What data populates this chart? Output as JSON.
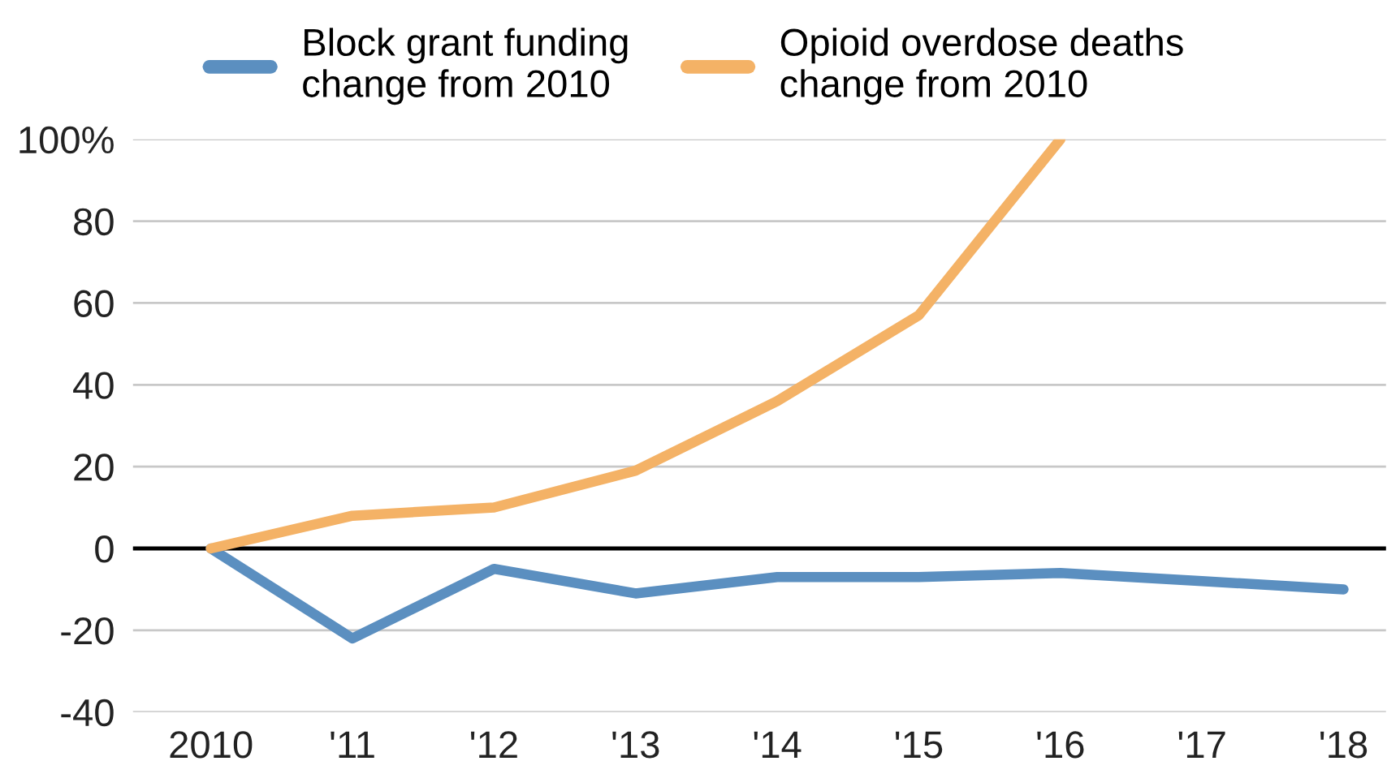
{
  "chart_data": {
    "type": "line",
    "categories": [
      "2010",
      "'11",
      "'12",
      "'13",
      "'14",
      "'15",
      "'16",
      "'17",
      "'18"
    ],
    "series": [
      {
        "name": "Block grant funding\nchange from 2010",
        "color": "#5b8fc0",
        "values": [
          0,
          -22,
          -5,
          -11,
          -7,
          -7,
          -6,
          -8,
          -10
        ]
      },
      {
        "name": "Opioid overdose deaths\nchange from 2010",
        "color": "#f4b266",
        "values": [
          0,
          8,
          10,
          19,
          36,
          57,
          100,
          null,
          null
        ]
      }
    ],
    "ylim": [
      -40,
      100
    ],
    "yticks": [
      {
        "value": -40,
        "label": "-40"
      },
      {
        "value": -20,
        "label": "-20"
      },
      0,
      20,
      40,
      60,
      80,
      {
        "value": 100,
        "label": "100%"
      }
    ],
    "ref_lines": [
      {
        "axis": "y",
        "value": 0,
        "color": "#000000"
      }
    ],
    "grid": "y",
    "legend": "top",
    "line_style": "solid",
    "marker": "none"
  }
}
